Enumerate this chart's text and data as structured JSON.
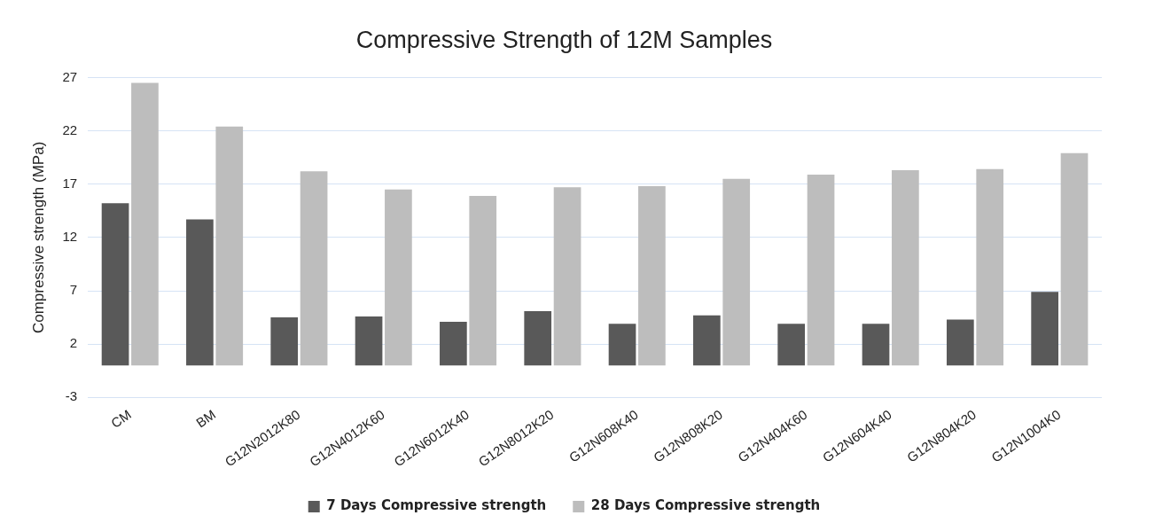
{
  "chart_data": {
    "type": "bar",
    "title": "Compressive Strength of 12M Samples",
    "ylabel": "Compressive strength (MPa)",
    "categories": [
      "CM",
      "BM",
      "G12N2012K80",
      "G12N4012K60",
      "G12N6012K40",
      "G12N8012K20",
      "G12N608K40",
      "G12N808K20",
      "G12N404K60",
      "G12N604K40",
      "G12N804K20",
      "G12N1004K0"
    ],
    "series": [
      {
        "name": "7 Days Compressive strength",
        "color": "#595959",
        "values": [
          15.2,
          13.7,
          4.5,
          4.6,
          4.1,
          5.1,
          3.9,
          4.7,
          3.9,
          3.9,
          4.3,
          6.9
        ]
      },
      {
        "name": "28 Days Compressive strength",
        "color": "#bdbdbd",
        "values": [
          26.5,
          22.4,
          18.2,
          16.5,
          15.9,
          16.7,
          16.8,
          17.5,
          17.9,
          18.3,
          18.4,
          19.9
        ]
      }
    ],
    "ylim": [
      -3,
      27
    ],
    "yticks": [
      -3,
      2,
      7,
      12,
      17,
      22,
      27
    ],
    "grid": "y",
    "legend": "bottom"
  }
}
